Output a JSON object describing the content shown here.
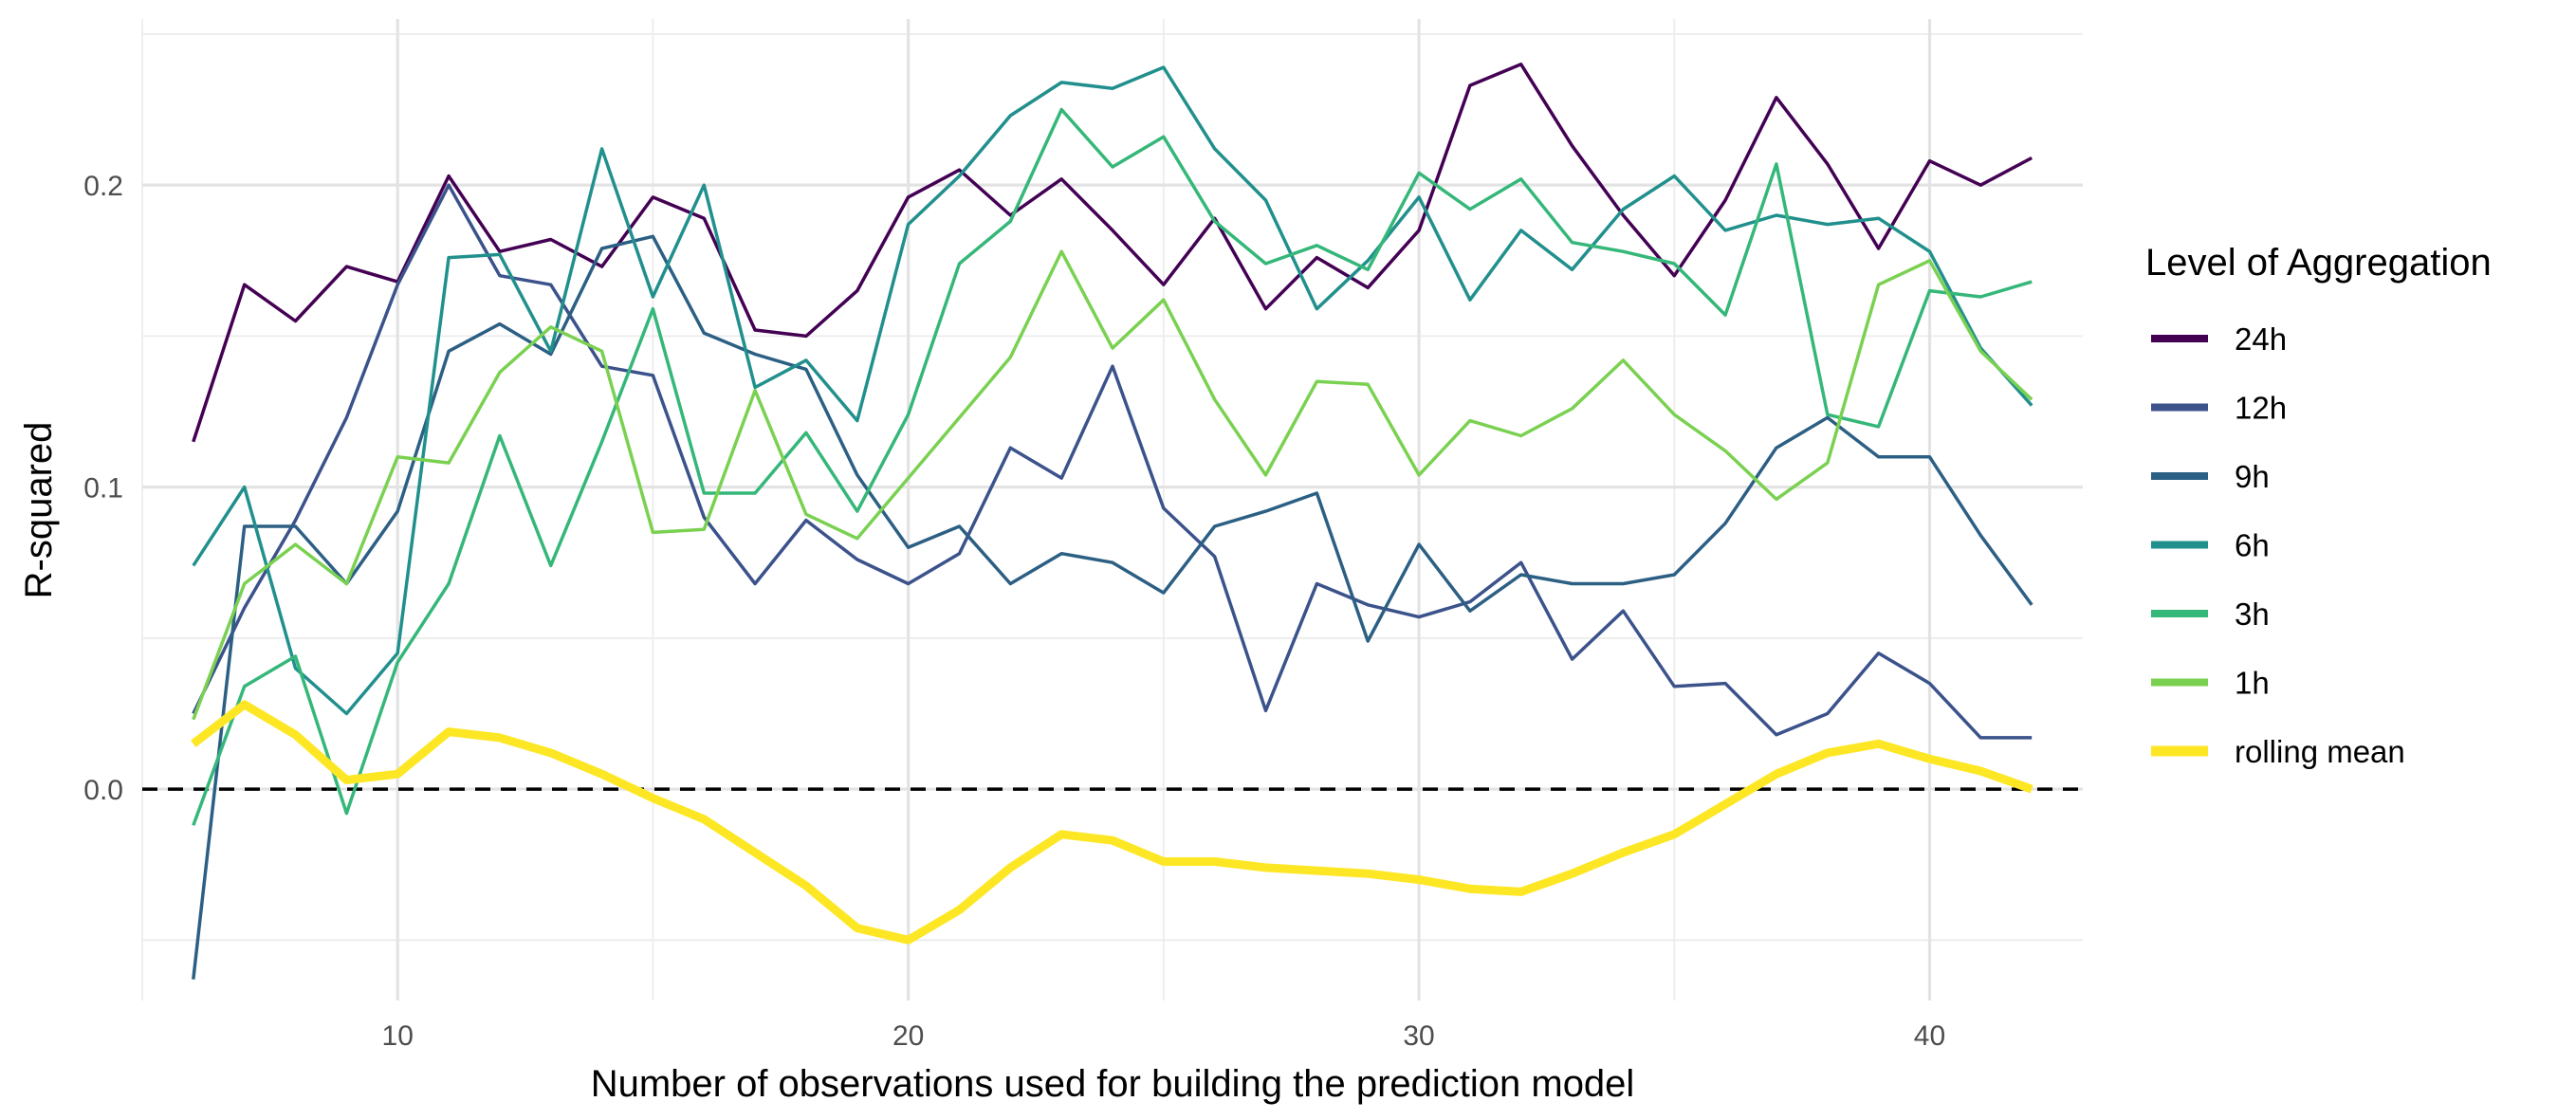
{
  "chart_data": {
    "type": "line",
    "xlabel": "Number of observations used for building the prediction model",
    "ylabel": "R-squared",
    "xlim": [
      5,
      43
    ],
    "ylim": [
      -0.07,
      0.255
    ],
    "x_ticks": [
      10,
      20,
      30,
      40
    ],
    "y_ticks": [
      0.0,
      0.1,
      0.2
    ],
    "y_tick_labels": [
      "0.0",
      "0.1",
      "0.2"
    ],
    "grid": true,
    "legend": {
      "title": "Level of Aggregation",
      "position": "right"
    },
    "hline": {
      "y": 0,
      "style": "dashed",
      "color": "#000000"
    },
    "x": [
      6,
      7,
      8,
      9,
      10,
      11,
      12,
      13,
      14,
      15,
      16,
      17,
      18,
      19,
      20,
      21,
      22,
      23,
      24,
      25,
      26,
      27,
      28,
      29,
      30,
      31,
      32,
      33,
      34,
      35,
      36,
      37,
      38,
      39,
      40,
      41,
      42
    ],
    "series": [
      {
        "name": "24h",
        "color": "#440154",
        "width": 3.5,
        "values": [
          0.115,
          0.167,
          0.155,
          0.173,
          0.168,
          0.203,
          0.178,
          0.182,
          0.173,
          0.196,
          0.189,
          0.152,
          0.15,
          0.165,
          0.196,
          0.205,
          0.19,
          0.202,
          0.185,
          0.167,
          0.189,
          0.159,
          0.176,
          0.166,
          0.185,
          0.233,
          0.24,
          0.213,
          0.19,
          0.17,
          0.195,
          0.229,
          0.207,
          0.179,
          0.208,
          0.2,
          0.209
        ]
      },
      {
        "name": "12h",
        "color": "#3b528b",
        "width": 3.5,
        "values": [
          0.025,
          0.06,
          0.089,
          0.123,
          0.167,
          0.2,
          0.17,
          0.167,
          0.14,
          0.137,
          0.09,
          0.068,
          0.089,
          0.076,
          0.068,
          0.078,
          0.113,
          0.103,
          0.14,
          0.093,
          0.077,
          0.026,
          0.068,
          0.061,
          0.057,
          0.062,
          0.075,
          0.043,
          0.059,
          0.034,
          0.035,
          0.018,
          0.025,
          0.045,
          0.035,
          0.017,
          0.017
        ]
      },
      {
        "name": "9h",
        "color": "#2c5f84",
        "width": 3.5,
        "values": [
          -0.063,
          0.087,
          0.087,
          0.068,
          0.092,
          0.145,
          0.154,
          0.144,
          0.179,
          0.183,
          0.151,
          0.144,
          0.139,
          0.104,
          0.08,
          0.087,
          0.068,
          0.078,
          0.075,
          0.065,
          0.087,
          0.092,
          0.098,
          0.049,
          0.081,
          0.059,
          0.071,
          0.068,
          0.068,
          0.071,
          0.088,
          0.113,
          0.123,
          0.11,
          0.11,
          0.084,
          0.061
        ]
      },
      {
        "name": "6h",
        "color": "#21908d",
        "width": 3.5,
        "values": [
          0.074,
          0.1,
          0.04,
          0.025,
          0.045,
          0.176,
          0.177,
          0.145,
          0.212,
          0.163,
          0.2,
          0.133,
          0.142,
          0.122,
          0.187,
          0.203,
          0.223,
          0.234,
          0.232,
          0.239,
          0.212,
          0.195,
          0.159,
          0.175,
          0.196,
          0.162,
          0.185,
          0.172,
          0.192,
          0.203,
          0.185,
          0.19,
          0.187,
          0.189,
          0.178,
          0.146,
          0.127
        ]
      },
      {
        "name": "3h",
        "color": "#35b779",
        "width": 3.5,
        "values": [
          -0.012,
          0.034,
          0.044,
          -0.008,
          0.042,
          0.068,
          0.117,
          0.074,
          0.115,
          0.159,
          0.098,
          0.098,
          0.118,
          0.092,
          0.124,
          0.174,
          0.188,
          0.225,
          0.206,
          0.216,
          0.188,
          0.174,
          0.18,
          0.172,
          0.204,
          0.192,
          0.202,
          0.181,
          0.178,
          0.174,
          0.157,
          0.207,
          0.124,
          0.12,
          0.165,
          0.163,
          0.168
        ]
      },
      {
        "name": "1h",
        "color": "#7ad151",
        "width": 3.5,
        "values": [
          0.023,
          0.068,
          0.081,
          0.068,
          0.11,
          0.108,
          0.138,
          0.153,
          0.145,
          0.085,
          0.086,
          0.132,
          0.091,
          0.083,
          0.103,
          0.123,
          0.143,
          0.178,
          0.146,
          0.162,
          0.129,
          0.104,
          0.135,
          0.134,
          0.104,
          0.122,
          0.117,
          0.126,
          0.142,
          0.124,
          0.112,
          0.096,
          0.108,
          0.167,
          0.175,
          0.145,
          0.129
        ]
      },
      {
        "name": "rolling mean",
        "color": "#fde725",
        "width": 9,
        "values": [
          0.015,
          0.028,
          0.018,
          0.003,
          0.005,
          0.019,
          0.017,
          0.012,
          0.005,
          -0.003,
          -0.01,
          -0.021,
          -0.032,
          -0.046,
          -0.05,
          -0.04,
          -0.026,
          -0.015,
          -0.017,
          -0.024,
          -0.024,
          -0.026,
          -0.027,
          -0.028,
          -0.03,
          -0.033,
          -0.034,
          -0.028,
          -0.021,
          -0.015,
          -0.005,
          0.005,
          0.012,
          0.015,
          0.01,
          0.006,
          0.0
        ]
      }
    ]
  }
}
